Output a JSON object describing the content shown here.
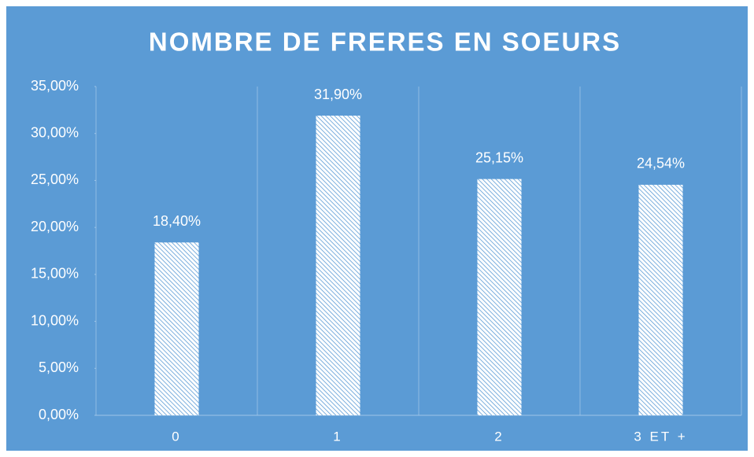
{
  "chart_data": {
    "type": "bar",
    "title": "NOMBRE DE FRERES EN SOEURS",
    "categories": [
      "0",
      "1",
      "2",
      "3 ET +"
    ],
    "values": [
      18.4,
      31.9,
      25.15,
      24.54
    ],
    "value_labels": [
      "18,40%",
      "31,90%",
      "25,15%",
      "24,54%"
    ],
    "color": "#ffffff",
    "ylim": [
      0,
      35
    ],
    "yticks": [
      {
        "value": 0,
        "label": "0,00%"
      },
      {
        "value": 5,
        "label": "5,00%"
      },
      {
        "value": 10,
        "label": "10,00%"
      },
      {
        "value": 15,
        "label": "15,00%"
      },
      {
        "value": 20,
        "label": "20,00%"
      },
      {
        "value": 25,
        "label": "25,00%"
      },
      {
        "value": 30,
        "label": "30,00%"
      },
      {
        "value": 35,
        "label": "35,00%"
      }
    ]
  }
}
